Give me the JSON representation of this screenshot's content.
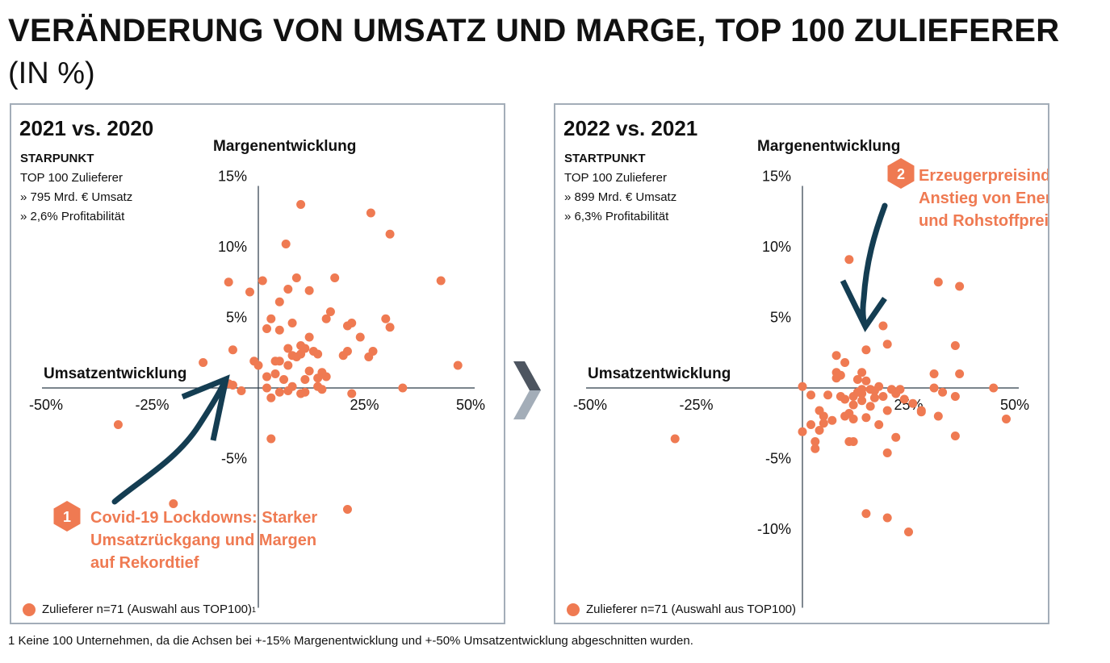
{
  "title": "VERÄNDERUNG VON UMSATZ UND MARGE, TOP 100 ZULIEFERER",
  "subtitle": "(IN %)",
  "footnote": "1 Keine 100 Unternehmen, da die Achsen bei +-15% Margenentwicklung und +-50% Umsatzentwicklung abgeschnitten wurden.",
  "colors": {
    "dot": "#ef7a52",
    "arrow": "#143d52",
    "frame": "#a3adb8",
    "chevron_top": "#4d5560",
    "chevron_bottom": "#a3adb8"
  },
  "chart_data": [
    {
      "type": "scatter",
      "period": "2021 vs. 2020",
      "start_title": "STARPUNKT",
      "start_lines": [
        "TOP 100 Zulieferer",
        "»  795 Mrd. € Umsatz",
        "»  2,6% Profitabilität"
      ],
      "xlabel": "Umsatzentwicklung",
      "ylabel": "Margenentwicklung",
      "xlim": [
        -50,
        50
      ],
      "ylim": [
        -15,
        15
      ],
      "x_ticks": [
        -50,
        -25,
        25,
        50
      ],
      "x_tick_labels": [
        "-50%",
        "-25%",
        "25%",
        "50%"
      ],
      "y_ticks": [
        15,
        10,
        5,
        -5
      ],
      "y_tick_labels": [
        "15%",
        "10%",
        "5%",
        "-5%"
      ],
      "legend": "Zulieferer n=71 (Auswahl aus TOP100)",
      "legend_sup": "1",
      "annotation": {
        "number": "1",
        "lines": [
          "Covid-19 Lockdowns: Starker",
          "Umsatzrückgang und Margen",
          "auf Rekordtief"
        ]
      },
      "points": [
        [
          10,
          13
        ],
        [
          26.5,
          12.4
        ],
        [
          31,
          10.9
        ],
        [
          6.5,
          10.2
        ],
        [
          -7,
          7.5
        ],
        [
          1,
          7.6
        ],
        [
          -2,
          6.8
        ],
        [
          7,
          7
        ],
        [
          9,
          7.8
        ],
        [
          12,
          6.9
        ],
        [
          18,
          7.8
        ],
        [
          5,
          6.1
        ],
        [
          43,
          7.6
        ],
        [
          17,
          5.4
        ],
        [
          16,
          4.9
        ],
        [
          30,
          4.9
        ],
        [
          31,
          4.3
        ],
        [
          22,
          4.6
        ],
        [
          21,
          4.4
        ],
        [
          3,
          4.9
        ],
        [
          2,
          4.2
        ],
        [
          5,
          4.1
        ],
        [
          8,
          4.6
        ],
        [
          24,
          3.6
        ],
        [
          12,
          3.6
        ],
        [
          10,
          3
        ],
        [
          7,
          2.8
        ],
        [
          11,
          2.8
        ],
        [
          13,
          2.6
        ],
        [
          8,
          2.3
        ],
        [
          10,
          2.4
        ],
        [
          14,
          2.4
        ],
        [
          -6,
          2.7
        ],
        [
          21,
          2.6
        ],
        [
          27,
          2.6
        ],
        [
          20,
          2.3
        ],
        [
          26,
          2.2
        ],
        [
          -13,
          1.8
        ],
        [
          -1,
          1.9
        ],
        [
          5,
          1.9
        ],
        [
          4,
          1.9
        ],
        [
          7,
          1.6
        ],
        [
          0,
          1.6
        ],
        [
          9,
          2.2
        ],
        [
          12,
          1.2
        ],
        [
          15,
          1.1
        ],
        [
          14,
          0.7
        ],
        [
          16,
          0.8
        ],
        [
          11,
          0.6
        ],
        [
          4,
          1
        ],
        [
          2,
          0.8
        ],
        [
          6,
          0.6
        ],
        [
          47,
          1.6
        ],
        [
          -7,
          0.3
        ],
        [
          -6,
          0.2
        ],
        [
          8,
          0.1
        ],
        [
          14,
          0.1
        ],
        [
          34,
          0
        ],
        [
          15,
          -0.1
        ],
        [
          2,
          0
        ],
        [
          -4,
          -0.2
        ],
        [
          5,
          -0.3
        ],
        [
          7,
          -0.2
        ],
        [
          11,
          -0.3
        ],
        [
          10,
          -0.4
        ],
        [
          22,
          -0.4
        ],
        [
          3,
          -0.7
        ],
        [
          -33,
          -2.6
        ],
        [
          3,
          -3.6
        ],
        [
          -20,
          -8.2
        ],
        [
          21,
          -8.6
        ]
      ]
    },
    {
      "type": "scatter",
      "period": "2022 vs. 2021",
      "start_title": "STARTPUNKT",
      "start_lines": [
        "TOP 100 Zulieferer",
        "»  899 Mrd. € Umsatz",
        "»  6,3% Profitabilität"
      ],
      "xlabel": "Umsatzentwicklung",
      "ylabel": "Margenentwicklung",
      "xlim": [
        -50,
        50
      ],
      "ylim": [
        -15,
        15
      ],
      "x_ticks": [
        -50,
        -25,
        25,
        50
      ],
      "x_tick_labels": [
        "-50%",
        "-25%",
        "25%",
        "50%"
      ],
      "y_ticks": [
        15,
        10,
        5,
        -5,
        -10
      ],
      "y_tick_labels": [
        "15%",
        "10%",
        "5%",
        "-5%",
        "-10%"
      ],
      "legend": "Zulieferer n=71 (Auswahl aus TOP100)",
      "legend_sup": "",
      "annotation": {
        "number": "2",
        "lines": [
          "Erzeugerpreisindex:",
          "Anstieg von Energie-",
          "und Rohstoffpreisen"
        ]
      },
      "points": [
        [
          11,
          9.1
        ],
        [
          32,
          7.5
        ],
        [
          37,
          7.2
        ],
        [
          19,
          4.4
        ],
        [
          20,
          3.1
        ],
        [
          15,
          2.7
        ],
        [
          36,
          3
        ],
        [
          8,
          2.3
        ],
        [
          10,
          1.8
        ],
        [
          8,
          1.1
        ],
        [
          9,
          0.9
        ],
        [
          14,
          1.1
        ],
        [
          13,
          0.6
        ],
        [
          15,
          0.5
        ],
        [
          31,
          1
        ],
        [
          37,
          1
        ],
        [
          8,
          0.7
        ],
        [
          0,
          0.1
        ],
        [
          18,
          0.1
        ],
        [
          21,
          -0.1
        ],
        [
          23,
          -0.1
        ],
        [
          14,
          -0.1
        ],
        [
          16,
          -0.1
        ],
        [
          31,
          0
        ],
        [
          33,
          -0.3
        ],
        [
          45,
          0
        ],
        [
          2,
          -0.5
        ],
        [
          6,
          -0.5
        ],
        [
          12,
          -0.6
        ],
        [
          19,
          -0.6
        ],
        [
          22,
          -0.4
        ],
        [
          36,
          -0.6
        ],
        [
          10,
          -0.8
        ],
        [
          14,
          -0.9
        ],
        [
          17,
          -0.7
        ],
        [
          12,
          -1.2
        ],
        [
          16,
          -1.3
        ],
        [
          20,
          -1.6
        ],
        [
          26,
          -1.1
        ],
        [
          28,
          -1.6
        ],
        [
          4,
          -1.6
        ],
        [
          5,
          -2
        ],
        [
          10,
          -2
        ],
        [
          12,
          -2.2
        ],
        [
          7,
          -2.3
        ],
        [
          11,
          -1.8
        ],
        [
          15,
          -2.1
        ],
        [
          18,
          -2.6
        ],
        [
          28,
          -1.7
        ],
        [
          32,
          -2
        ],
        [
          48,
          -2.2
        ],
        [
          5,
          -2.5
        ],
        [
          4,
          -3
        ],
        [
          2,
          -2.6
        ],
        [
          0,
          -3.1
        ],
        [
          22,
          -3.5
        ],
        [
          36,
          -3.4
        ],
        [
          12,
          -3.8
        ],
        [
          11,
          -3.8
        ],
        [
          3,
          -3.8
        ],
        [
          3,
          -4.3
        ],
        [
          20,
          -4.6
        ],
        [
          -30,
          -3.6
        ],
        [
          15,
          -8.9
        ],
        [
          20,
          -9.2
        ],
        [
          25,
          -10.2
        ],
        [
          14,
          -0.4
        ],
        [
          13,
          -0.3
        ],
        [
          17,
          -0.2
        ],
        [
          24,
          -0.8
        ],
        [
          9,
          -0.6
        ]
      ]
    }
  ]
}
